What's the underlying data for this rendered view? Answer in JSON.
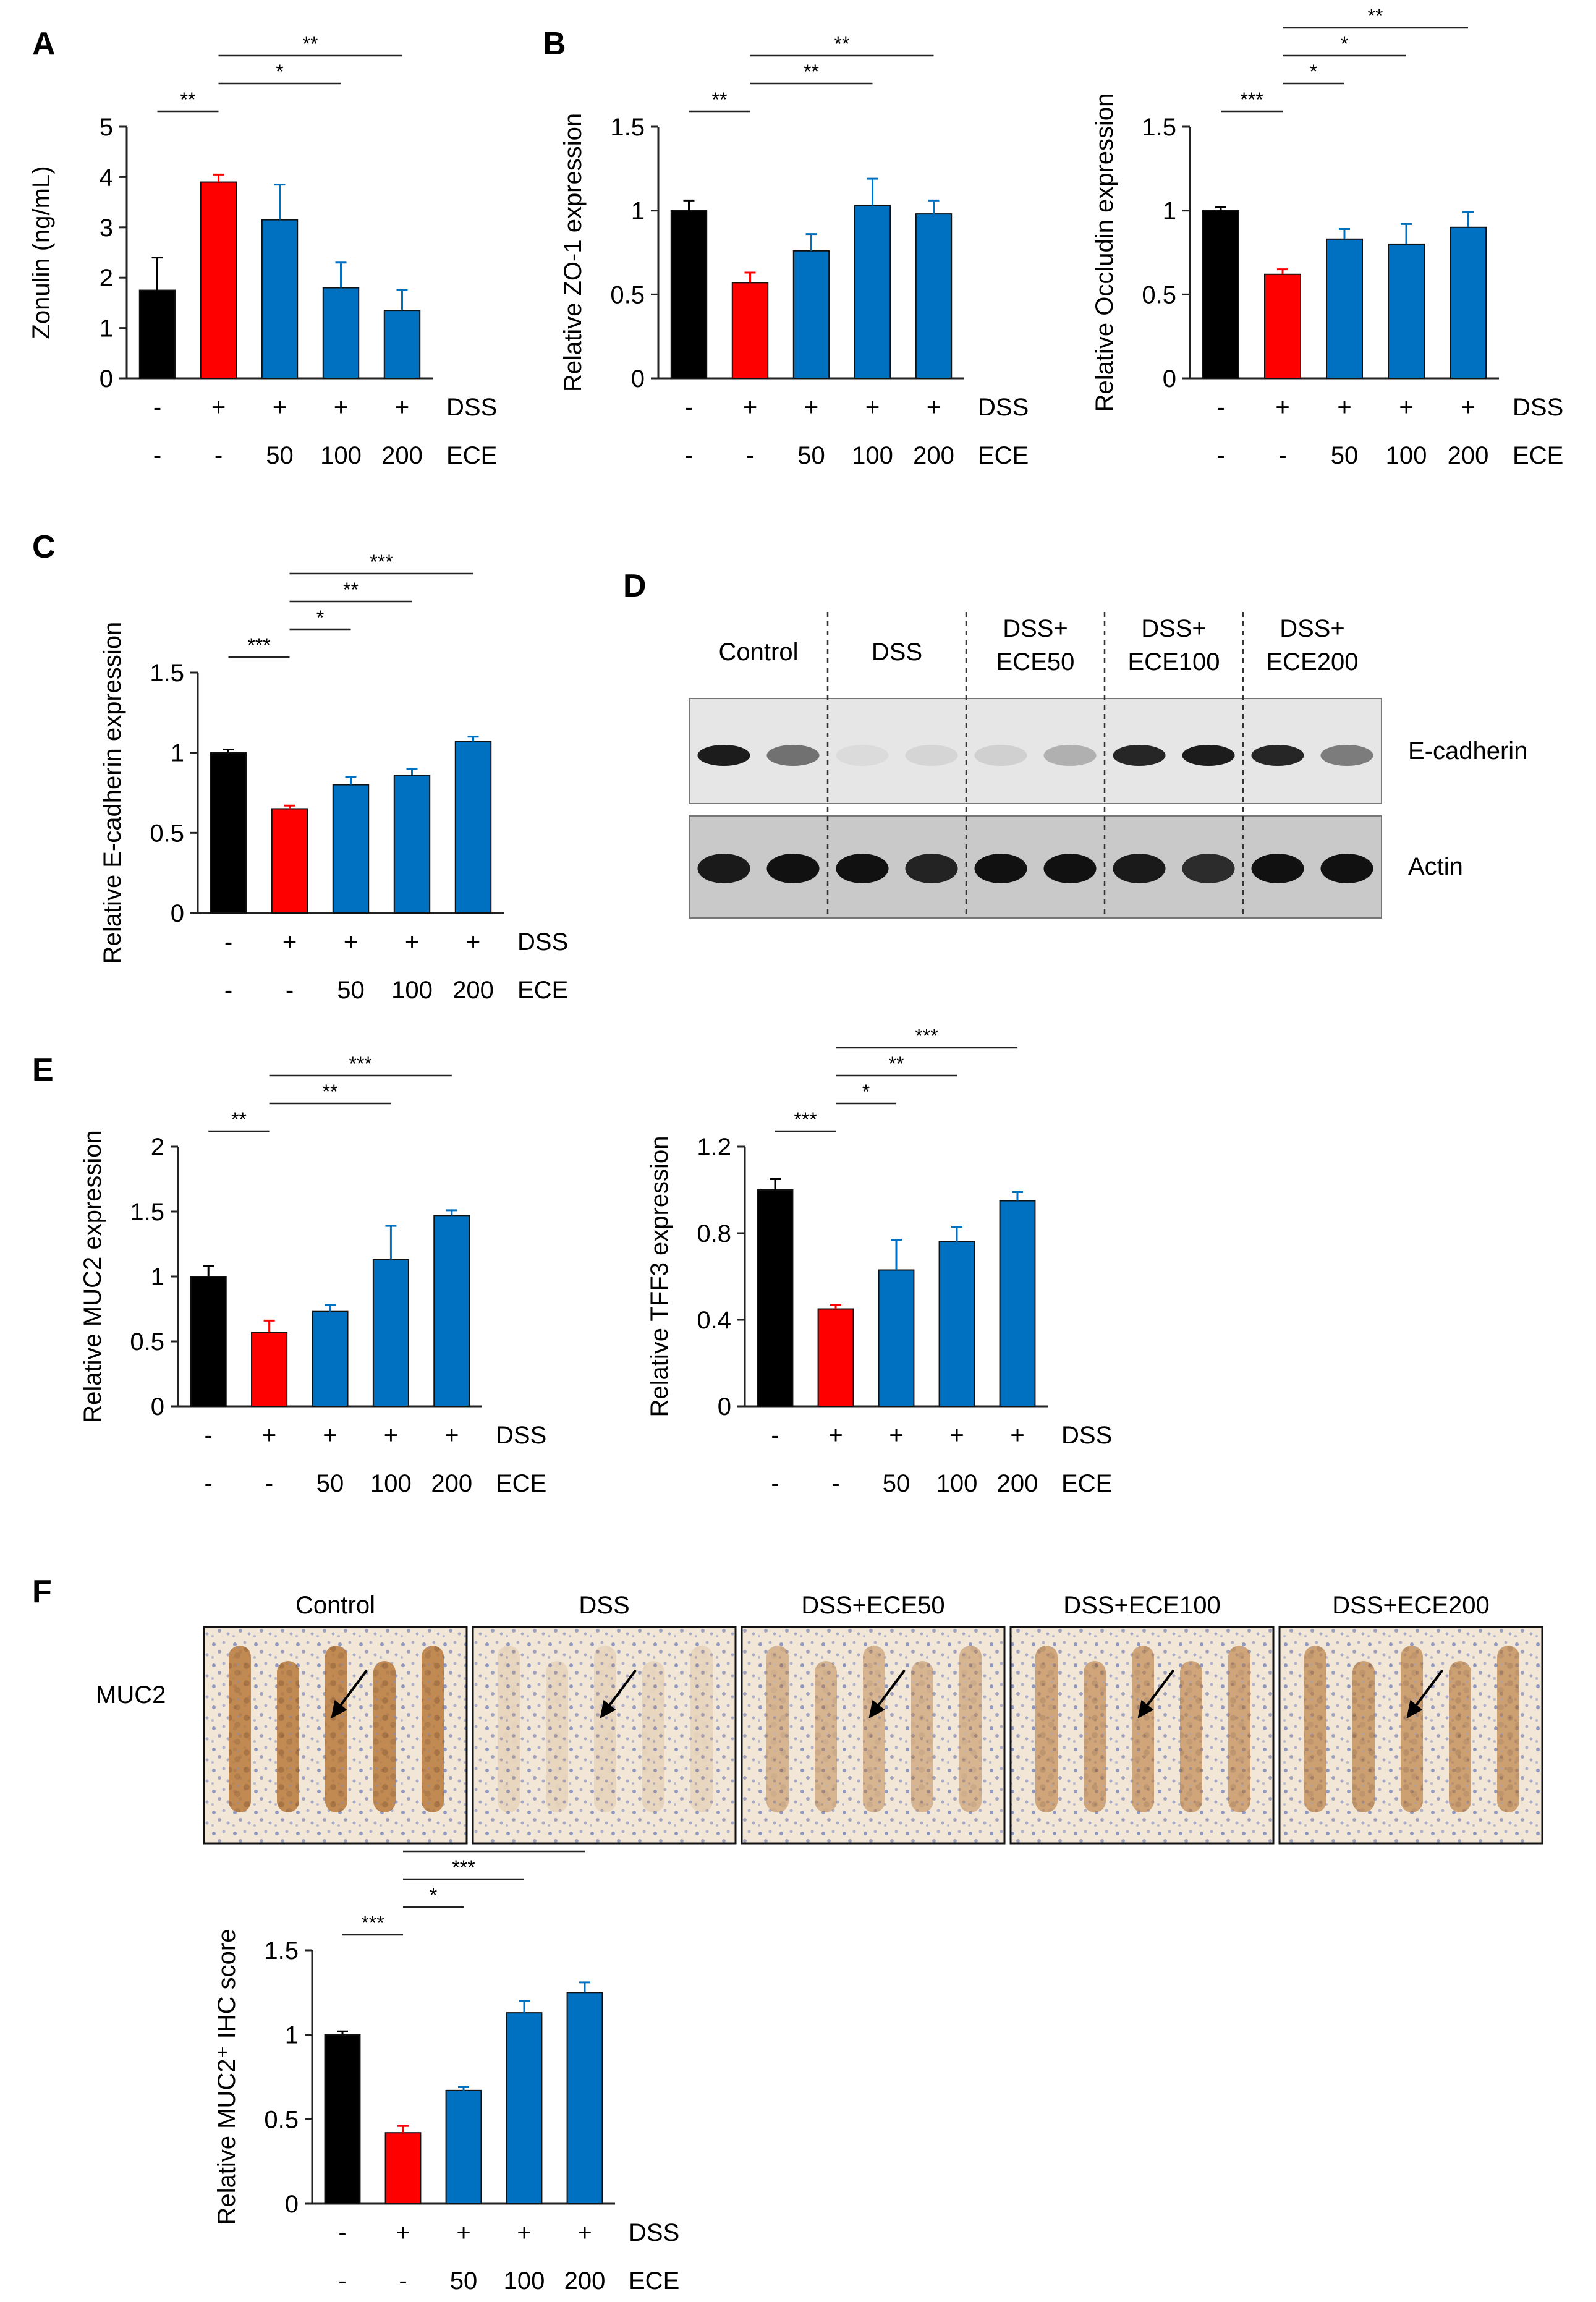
{
  "colors": {
    "control": "#000000",
    "dss": "#ff0000",
    "ece": "#0070c0",
    "axis": "#222222"
  },
  "conditions": {
    "dss_row": [
      "-",
      "+",
      "+",
      "+",
      "+"
    ],
    "ece_row": [
      "-",
      "-",
      "50",
      "100",
      "200"
    ],
    "dss_label": "DSS",
    "ece_label": "ECE"
  },
  "chart_data": [
    {
      "id": "A",
      "panel": "A",
      "type": "bar",
      "ylabel": "Zonulin (ng/mL)",
      "yticks": [
        "0",
        "1",
        "2",
        "3",
        "4",
        "5"
      ],
      "ylim": [
        0,
        5
      ],
      "values": [
        1.75,
        3.9,
        3.15,
        1.8,
        1.35
      ],
      "errors": [
        0.65,
        0.15,
        0.7,
        0.5,
        0.4
      ],
      "sig": [
        {
          "from": 0,
          "to": 1,
          "text": "**"
        },
        {
          "from": 1,
          "to": 3,
          "text": "*"
        },
        {
          "from": 1,
          "to": 4,
          "text": "**"
        }
      ]
    },
    {
      "id": "B1",
      "panel": "B",
      "type": "bar",
      "ylabel": "Relative ZO-1  expression",
      "yticks": [
        "0",
        "0.5",
        "1",
        "1.5"
      ],
      "ylim": [
        0,
        1.5
      ],
      "values": [
        1.0,
        0.57,
        0.76,
        1.03,
        0.98
      ],
      "errors": [
        0.06,
        0.06,
        0.1,
        0.16,
        0.08
      ],
      "sig": [
        {
          "from": 0,
          "to": 1,
          "text": "**"
        },
        {
          "from": 1,
          "to": 3,
          "text": "**"
        },
        {
          "from": 1,
          "to": 4,
          "text": "**"
        }
      ]
    },
    {
      "id": "B2",
      "panel": "",
      "type": "bar",
      "ylabel": "Relative Occludin  expression",
      "yticks": [
        "0",
        "0.5",
        "1",
        "1.5"
      ],
      "ylim": [
        0,
        1.5
      ],
      "values": [
        1.0,
        0.62,
        0.83,
        0.8,
        0.9
      ],
      "errors": [
        0.02,
        0.03,
        0.06,
        0.12,
        0.09
      ],
      "sig": [
        {
          "from": 0,
          "to": 1,
          "text": "***"
        },
        {
          "from": 1,
          "to": 2,
          "text": "*"
        },
        {
          "from": 1,
          "to": 3,
          "text": "*"
        },
        {
          "from": 1,
          "to": 4,
          "text": "**"
        }
      ]
    },
    {
      "id": "C",
      "panel": "C",
      "type": "bar",
      "ylabel": "Relative E-cadherin  expression",
      "yticks": [
        "0",
        "0.5",
        "1",
        "1.5"
      ],
      "ylim": [
        0,
        1.5
      ],
      "values": [
        1.0,
        0.65,
        0.8,
        0.86,
        1.07
      ],
      "errors": [
        0.02,
        0.02,
        0.05,
        0.04,
        0.03
      ],
      "sig": [
        {
          "from": 0,
          "to": 1,
          "text": "***"
        },
        {
          "from": 1,
          "to": 2,
          "text": "*"
        },
        {
          "from": 1,
          "to": 3,
          "text": "**"
        },
        {
          "from": 1,
          "to": 4,
          "text": "***"
        }
      ]
    },
    {
      "id": "E1",
      "panel": "E",
      "type": "bar",
      "ylabel": "Relative MUC2  expression",
      "yticks": [
        "0",
        "0.5",
        "1",
        "1.5",
        "2"
      ],
      "ylim": [
        0,
        2
      ],
      "values": [
        1.0,
        0.57,
        0.73,
        1.13,
        1.47
      ],
      "errors": [
        0.08,
        0.09,
        0.05,
        0.26,
        0.04
      ],
      "sig": [
        {
          "from": 0,
          "to": 1,
          "text": "**"
        },
        {
          "from": 1,
          "to": 3,
          "text": "**"
        },
        {
          "from": 1,
          "to": 4,
          "text": "***"
        }
      ]
    },
    {
      "id": "E2",
      "panel": "",
      "type": "bar",
      "ylabel": "Relative TFF3  expression",
      "yticks": [
        "0",
        "0.4",
        "0.8",
        "1.2"
      ],
      "ylim": [
        0,
        1.2
      ],
      "values": [
        1.0,
        0.45,
        0.63,
        0.76,
        0.95
      ],
      "errors": [
        0.05,
        0.02,
        0.14,
        0.07,
        0.04
      ],
      "sig": [
        {
          "from": 0,
          "to": 1,
          "text": "***"
        },
        {
          "from": 1,
          "to": 2,
          "text": "*"
        },
        {
          "from": 1,
          "to": 3,
          "text": "**"
        },
        {
          "from": 1,
          "to": 4,
          "text": "***"
        }
      ]
    },
    {
      "id": "F",
      "panel": "",
      "type": "bar",
      "ylabel": "Relative MUC2⁺ IHC score",
      "yticks": [
        "0",
        "0.5",
        "1",
        "1.5"
      ],
      "ylim": [
        0,
        1.5
      ],
      "values": [
        1.0,
        0.42,
        0.67,
        1.13,
        1.25
      ],
      "errors": [
        0.02,
        0.04,
        0.02,
        0.07,
        0.06
      ],
      "sig": [
        {
          "from": 0,
          "to": 1,
          "text": "***"
        },
        {
          "from": 1,
          "to": 2,
          "text": "*"
        },
        {
          "from": 1,
          "to": 3,
          "text": "***"
        },
        {
          "from": 1,
          "to": 4,
          "text": "***"
        }
      ]
    }
  ],
  "panel_d": {
    "label": "D",
    "groups": [
      "Control",
      "DSS",
      "DSS+\nECE50",
      "DSS+\nECE100",
      "DSS+\nECE200"
    ],
    "blots": [
      {
        "name": "E-cadherin",
        "intensity": [
          0.95,
          0.55,
          0.05,
          0.08,
          0.1,
          0.25,
          0.9,
          0.95,
          0.9,
          0.5
        ]
      },
      {
        "name": "Actin",
        "intensity": [
          0.95,
          1.0,
          1.0,
          0.9,
          1.0,
          1.0,
          0.95,
          0.85,
          1.0,
          1.0
        ]
      }
    ]
  },
  "panel_f": {
    "label": "F",
    "row_label": "MUC2",
    "titles": [
      "Control",
      "DSS",
      "DSS+ECE50",
      "DSS+ECE100",
      "DSS+ECE200"
    ],
    "staining": [
      0.85,
      0.15,
      0.45,
      0.6,
      0.65
    ]
  }
}
